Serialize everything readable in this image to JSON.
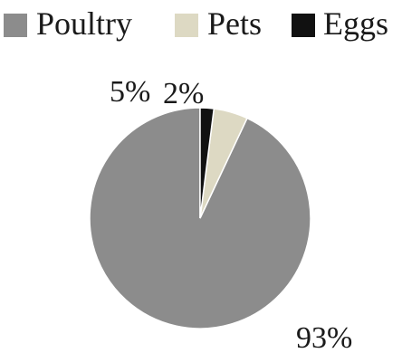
{
  "chart_data": {
    "type": "pie",
    "title": "",
    "legend_position": "top",
    "slices": [
      {
        "label": "Poultry",
        "value": 93,
        "display": "93%",
        "color": "#8c8c8c"
      },
      {
        "label": "Pets",
        "value": 5,
        "display": "5%",
        "color": "#ddd9c3"
      },
      {
        "label": "Eggs",
        "value": 2,
        "display": "2%",
        "color": "#111111"
      }
    ]
  }
}
